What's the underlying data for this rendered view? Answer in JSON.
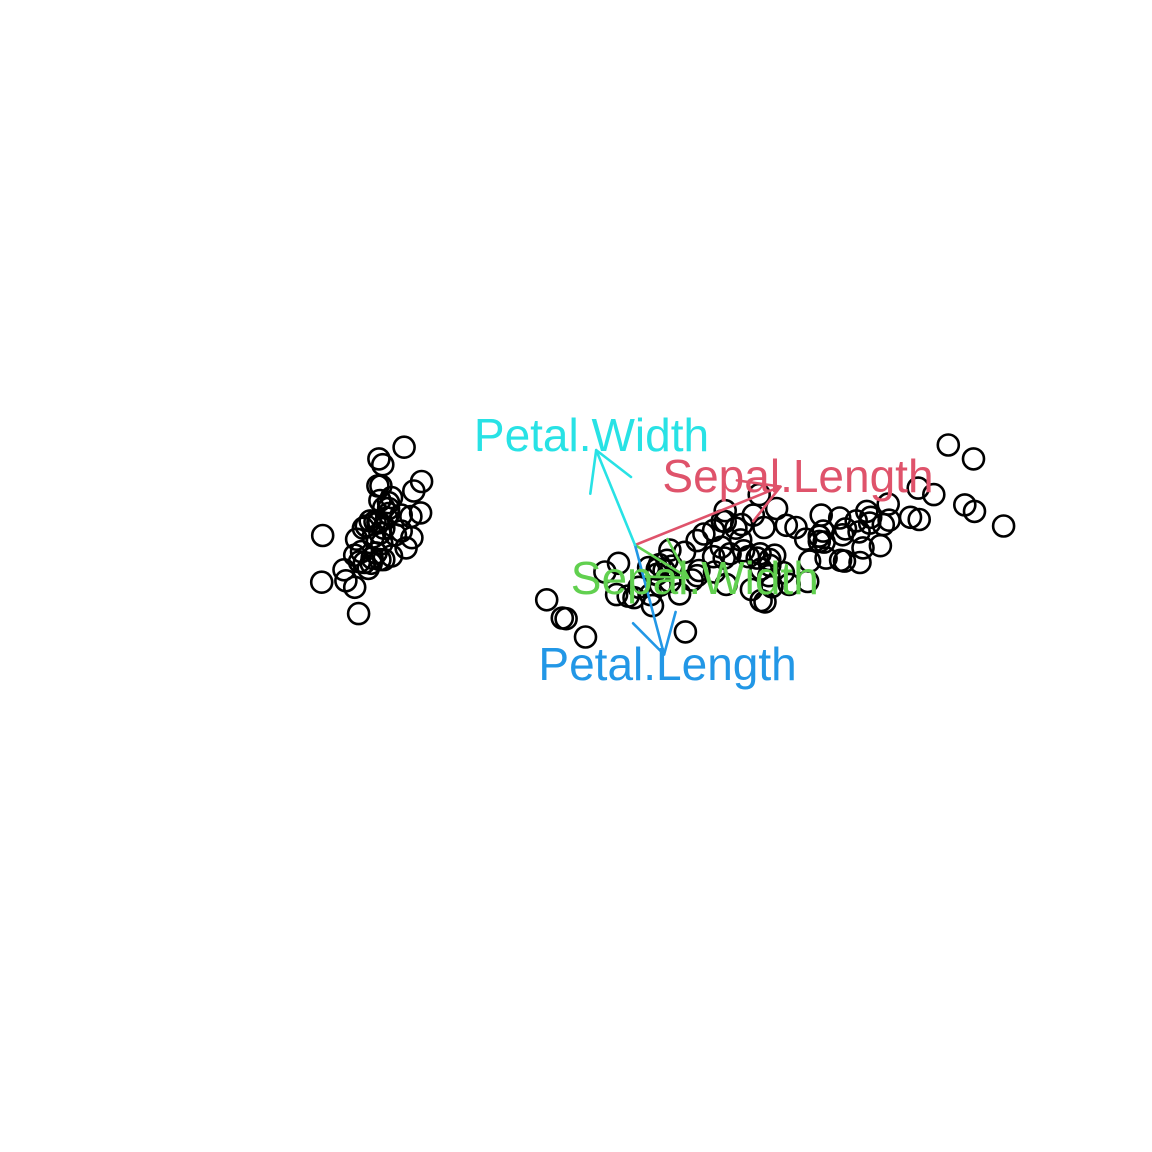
{
  "chart_data": {
    "type": "scatter",
    "title": "",
    "xlabel": "",
    "ylabel": "",
    "xlim": [
      -3.2,
      3.8
    ],
    "ylim": [
      -2.8,
      2.8
    ],
    "axes_visible": false,
    "grid": false,
    "point_style": "open-circle",
    "point_color": "#000000",
    "points": [
      [
        -2.68,
        0.32
      ],
      [
        -2.71,
        -0.18
      ],
      [
        -2.89,
        -0.14
      ],
      [
        -2.75,
        -0.32
      ],
      [
        -2.73,
        0.33
      ],
      [
        -2.28,
        0.74
      ],
      [
        -2.82,
        -0.09
      ],
      [
        -2.63,
        0.16
      ],
      [
        -2.89,
        -0.58
      ],
      [
        -2.67,
        -0.11
      ],
      [
        -2.51,
        0.65
      ],
      [
        -2.61,
        0.02
      ],
      [
        -2.79,
        -0.24
      ],
      [
        -3.23,
        -0.51
      ],
      [
        -2.64,
        1.18
      ],
      [
        -2.38,
        1.34
      ],
      [
        -2.62,
        0.81
      ],
      [
        -2.65,
        0.31
      ],
      [
        -2.2,
        0.87
      ],
      [
        -2.59,
        0.51
      ],
      [
        -2.31,
        0.39
      ],
      [
        -2.54,
        0.43
      ],
      [
        -3.22,
        0.13
      ],
      [
        -2.3,
        0.1
      ],
      [
        -2.36,
        -0.04
      ],
      [
        -2.51,
        -0.15
      ],
      [
        -2.47,
        0.14
      ],
      [
        -2.56,
        0.37
      ],
      [
        -2.64,
        0.31
      ],
      [
        -2.63,
        -0.2
      ],
      [
        -2.59,
        -0.2
      ],
      [
        -2.41,
        0.41
      ],
      [
        -2.65,
        0.81
      ],
      [
        -2.6,
        1.1
      ],
      [
        -2.67,
        -0.11
      ],
      [
        -2.87,
        0.08
      ],
      [
        -2.63,
        0.61
      ],
      [
        -2.8,
        0.23
      ],
      [
        -2.98,
        -0.49
      ],
      [
        -2.59,
        0.23
      ],
      [
        -2.77,
        0.26
      ],
      [
        -2.85,
        -0.94
      ],
      [
        -3.0,
        -0.34
      ],
      [
        -2.41,
        0.19
      ],
      [
        -2.21,
        0.44
      ],
      [
        -2.72,
        -0.25
      ],
      [
        -2.54,
        0.5
      ],
      [
        -2.84,
        -0.23
      ],
      [
        -2.54,
        0.58
      ],
      [
        -2.7,
        0.11
      ],
      [
        1.28,
        0.69
      ],
      [
        0.93,
        0.32
      ],
      [
        1.46,
        0.5
      ],
      [
        0.18,
        -0.83
      ],
      [
        1.09,
        0.07
      ],
      [
        0.64,
        -0.42
      ],
      [
        1.1,
        0.28
      ],
      [
        -0.75,
        -1.0
      ],
      [
        1.04,
        0.23
      ],
      [
        -0.01,
        -0.72
      ],
      [
        -0.51,
        -1.26
      ],
      [
        0.51,
        -0.1
      ],
      [
        0.26,
        -0.55
      ],
      [
        0.98,
        -0.12
      ],
      [
        -0.17,
        -0.25
      ],
      [
        0.93,
        0.47
      ],
      [
        0.66,
        -0.35
      ],
      [
        0.23,
        -0.33
      ],
      [
        0.94,
        -0.54
      ],
      [
        0.04,
        -0.58
      ],
      [
        1.12,
        -0.08
      ],
      [
        0.36,
        -0.07
      ],
      [
        1.3,
        -0.33
      ],
      [
        0.92,
        -0.18
      ],
      [
        0.71,
        0.15
      ],
      [
        0.9,
        0.33
      ],
      [
        1.33,
        0.24
      ],
      [
        1.56,
        0.27
      ],
      [
        0.81,
        -0.16
      ],
      [
        -0.31,
        -0.37
      ],
      [
        -0.07,
        -0.7
      ],
      [
        -0.19,
        -0.68
      ],
      [
        0.14,
        -0.31
      ],
      [
        1.38,
        -0.42
      ],
      [
        0.59,
        -0.48
      ],
      [
        0.81,
        0.2
      ],
      [
        1.22,
        0.41
      ],
      [
        0.82,
        -0.37
      ],
      [
        0.25,
        -0.27
      ],
      [
        0.16,
        -0.68
      ],
      [
        0.46,
        -0.67
      ],
      [
        0.89,
        -0.03
      ],
      [
        0.23,
        -0.4
      ],
      [
        -0.71,
        -1.01
      ],
      [
        0.36,
        -0.5
      ],
      [
        0.33,
        -0.21
      ],
      [
        0.38,
        -0.29
      ],
      [
        0.64,
        0.06
      ],
      [
        -0.91,
        -0.75
      ],
      [
        0.3,
        -0.35
      ],
      [
        2.53,
        -0.01
      ],
      [
        1.41,
        -0.57
      ],
      [
        2.62,
        0.34
      ],
      [
        1.97,
        -0.18
      ],
      [
        2.35,
        -0.04
      ],
      [
        3.4,
        0.55
      ],
      [
        0.52,
        -1.19
      ],
      [
        2.93,
        0.35
      ],
      [
        2.32,
        -0.24
      ],
      [
        2.92,
        0.78
      ],
      [
        1.66,
        0.24
      ],
      [
        1.8,
        -0.22
      ],
      [
        2.17,
        0.22
      ],
      [
        1.34,
        -0.78
      ],
      [
        1.59,
        -0.54
      ],
      [
        1.9,
        0.12
      ],
      [
        1.95,
        0.04
      ],
      [
        3.49,
        1.18
      ],
      [
        3.8,
        0.26
      ],
      [
        1.3,
        -0.76
      ],
      [
        2.43,
        0.38
      ],
      [
        1.2,
        -0.61
      ],
      [
        3.5,
        0.46
      ],
      [
        1.39,
        -0.2
      ],
      [
        2.28,
        0.33
      ],
      [
        2.61,
        0.56
      ],
      [
        1.26,
        -0.18
      ],
      [
        1.29,
        -0.12
      ],
      [
        2.12,
        -0.21
      ],
      [
        2.39,
        0.46
      ],
      [
        2.84,
        0.38
      ],
      [
        3.23,
        1.37
      ],
      [
        2.16,
        -0.22
      ],
      [
        1.44,
        -0.14
      ],
      [
        1.78,
        -0.5
      ],
      [
        3.08,
        0.69
      ],
      [
        2.14,
        0.14
      ],
      [
        1.9,
        0.05
      ],
      [
        1.17,
        -0.16
      ],
      [
        2.11,
        0.37
      ],
      [
        2.31,
        0.18
      ],
      [
        1.92,
        0.41
      ],
      [
        1.41,
        -0.57
      ],
      [
        2.56,
        0.28
      ],
      [
        2.42,
        0.3
      ],
      [
        1.94,
        0.19
      ],
      [
        1.53,
        -0.38
      ],
      [
        1.76,
        0.08
      ],
      [
        1.9,
        0.12
      ],
      [
        1.39,
        -0.28
      ]
    ],
    "arrows": [
      {
        "label": "Sepal.Length",
        "color": "#DF536B",
        "x": 1.5,
        "y": 0.8
      },
      {
        "label": "Sepal.Width",
        "color": "#61D04F",
        "x": 0.55,
        "y": -0.45
      },
      {
        "label": "Petal.Length",
        "color": "#2297E6",
        "x": 0.3,
        "y": -1.5
      },
      {
        "label": "Petal.Width",
        "color": "#28E2E5",
        "x": -0.4,
        "y": 1.3
      }
    ]
  }
}
